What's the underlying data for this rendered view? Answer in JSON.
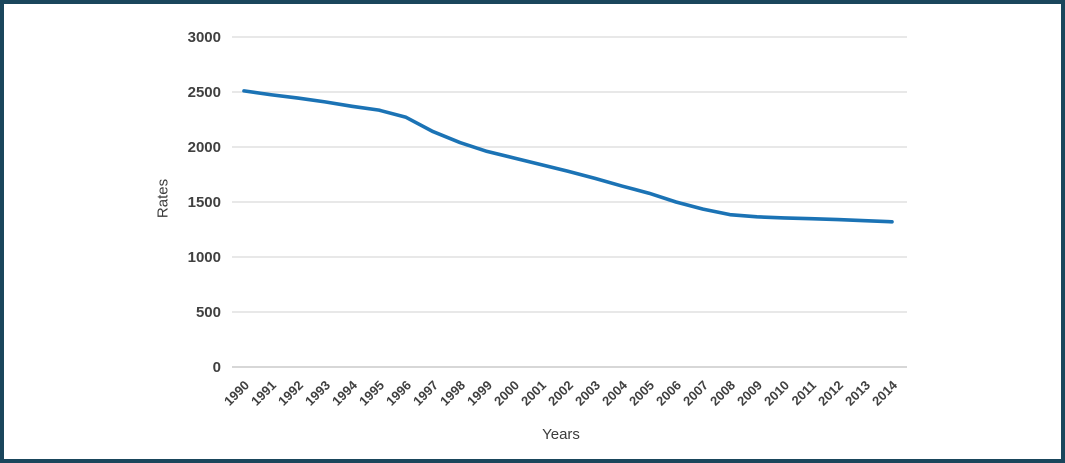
{
  "frame": {
    "border_color": "#1a465c",
    "background": "#ffffff"
  },
  "chart_data": {
    "type": "line",
    "title": "",
    "xlabel": "Years",
    "ylabel": "Rates",
    "categories": [
      1990,
      1991,
      1992,
      1993,
      1994,
      1995,
      1996,
      1997,
      1998,
      1999,
      2000,
      2001,
      2002,
      2003,
      2004,
      2005,
      2006,
      2007,
      2008,
      2009,
      2010,
      2011,
      2012,
      2013,
      2014
    ],
    "series": [
      {
        "name": "Rates",
        "color": "#1b73b5",
        "values": [
          2510,
          2475,
          2445,
          2410,
          2370,
          2335,
          2270,
          2140,
          2040,
          1960,
          1900,
          1840,
          1780,
          1715,
          1645,
          1580,
          1500,
          1435,
          1385,
          1365,
          1355,
          1348,
          1340,
          1330,
          1320
        ]
      }
    ],
    "ylim": [
      0,
      3000
    ],
    "yticks": [
      0,
      500,
      1000,
      1500,
      2000,
      2500,
      3000
    ],
    "grid": true,
    "legend": "none",
    "gridline_color": "#d9d9d9",
    "baseline_color": "#bfbfbf",
    "tick_label_color": "#404040"
  }
}
